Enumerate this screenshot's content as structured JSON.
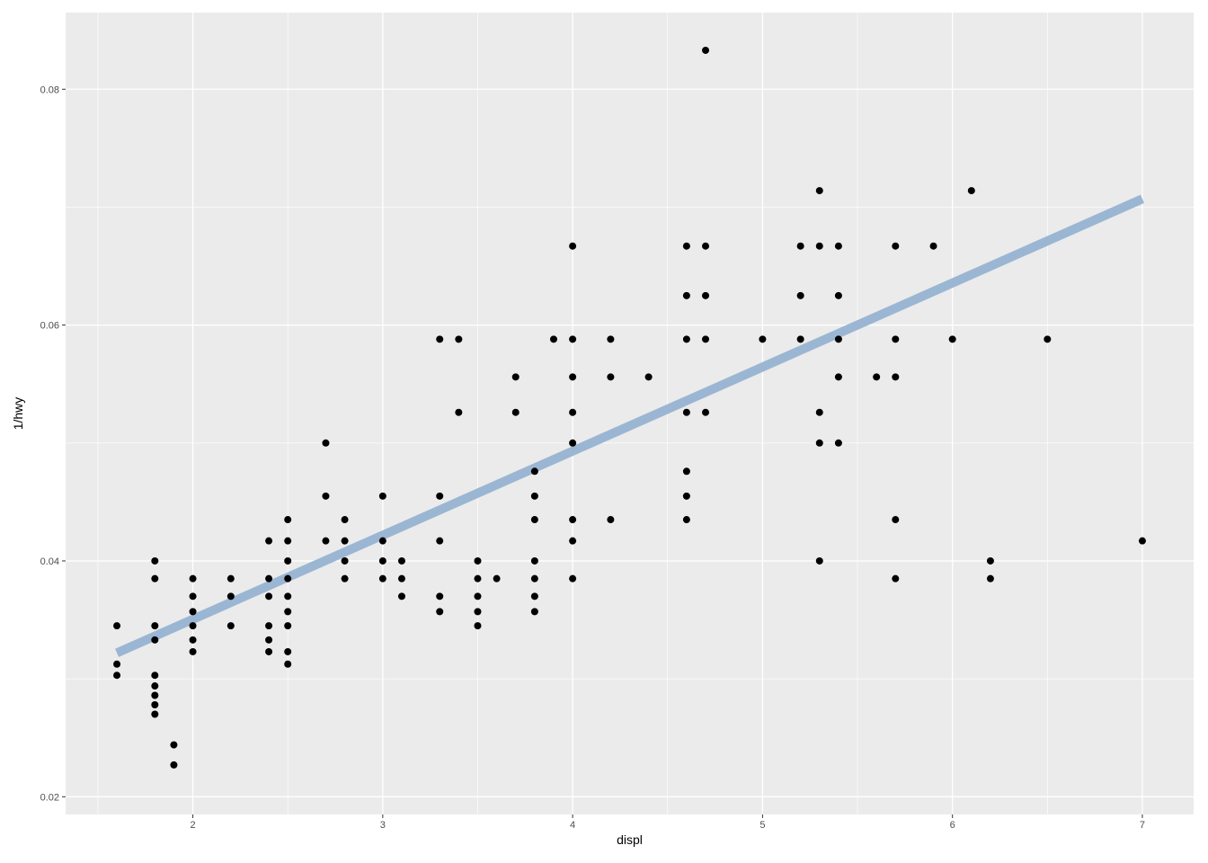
{
  "chart_data": {
    "type": "scatter",
    "title": "",
    "xlabel": "displ",
    "ylabel": "1/hwy",
    "xlim": [
      1.33,
      7.27
    ],
    "ylim": [
      0.0185,
      0.0865
    ],
    "x_ticks": [
      2,
      3,
      4,
      5,
      6,
      7
    ],
    "x_tick_labels": [
      "2",
      "3",
      "4",
      "5",
      "6",
      "7"
    ],
    "y_ticks": [
      0.02,
      0.04,
      0.06,
      0.08
    ],
    "y_tick_labels": [
      "0.02",
      "0.04",
      "0.06",
      "0.08"
    ],
    "grid": true,
    "colors": {
      "panel_background": "#ebebeb",
      "grid": "#ffffff",
      "points": "#000000",
      "fit_line": "#9ab6d3"
    },
    "points": [
      [
        1.6,
        0.0345
      ],
      [
        1.6,
        0.03125
      ],
      [
        1.6,
        0.0303
      ],
      [
        1.8,
        0.04
      ],
      [
        1.8,
        0.0385
      ],
      [
        1.8,
        0.0345
      ],
      [
        1.8,
        0.0333
      ],
      [
        1.8,
        0.0303
      ],
      [
        1.8,
        0.0294
      ],
      [
        1.8,
        0.0286
      ],
      [
        1.8,
        0.0278
      ],
      [
        1.8,
        0.027
      ],
      [
        1.9,
        0.0244
      ],
      [
        1.9,
        0.0227
      ],
      [
        2.0,
        0.0385
      ],
      [
        2.0,
        0.037
      ],
      [
        2.0,
        0.0357
      ],
      [
        2.0,
        0.0345
      ],
      [
        2.0,
        0.0333
      ],
      [
        2.0,
        0.0323
      ],
      [
        2.2,
        0.0385
      ],
      [
        2.2,
        0.037
      ],
      [
        2.2,
        0.0345
      ],
      [
        2.4,
        0.0417
      ],
      [
        2.4,
        0.0385
      ],
      [
        2.4,
        0.037
      ],
      [
        2.4,
        0.0345
      ],
      [
        2.4,
        0.0333
      ],
      [
        2.4,
        0.0323
      ],
      [
        2.5,
        0.0435
      ],
      [
        2.5,
        0.0417
      ],
      [
        2.5,
        0.04
      ],
      [
        2.5,
        0.0385
      ],
      [
        2.5,
        0.037
      ],
      [
        2.5,
        0.0357
      ],
      [
        2.5,
        0.0345
      ],
      [
        2.5,
        0.0323
      ],
      [
        2.5,
        0.03125
      ],
      [
        2.7,
        0.05
      ],
      [
        2.7,
        0.0455
      ],
      [
        2.7,
        0.0417
      ],
      [
        2.8,
        0.0435
      ],
      [
        2.8,
        0.0417
      ],
      [
        2.8,
        0.04
      ],
      [
        2.8,
        0.0385
      ],
      [
        3.0,
        0.0455
      ],
      [
        3.0,
        0.0417
      ],
      [
        3.0,
        0.04
      ],
      [
        3.0,
        0.0385
      ],
      [
        3.1,
        0.04
      ],
      [
        3.1,
        0.0385
      ],
      [
        3.1,
        0.037
      ],
      [
        3.3,
        0.0588
      ],
      [
        3.3,
        0.0455
      ],
      [
        3.3,
        0.0417
      ],
      [
        3.3,
        0.037
      ],
      [
        3.3,
        0.0357
      ],
      [
        3.4,
        0.0588
      ],
      [
        3.4,
        0.0526
      ],
      [
        3.5,
        0.04
      ],
      [
        3.5,
        0.0385
      ],
      [
        3.5,
        0.037
      ],
      [
        3.5,
        0.0357
      ],
      [
        3.5,
        0.0345
      ],
      [
        3.6,
        0.0385
      ],
      [
        3.7,
        0.0556
      ],
      [
        3.7,
        0.0526
      ],
      [
        3.8,
        0.0476
      ],
      [
        3.8,
        0.0455
      ],
      [
        3.8,
        0.0435
      ],
      [
        3.8,
        0.04
      ],
      [
        3.8,
        0.0385
      ],
      [
        3.8,
        0.037
      ],
      [
        3.8,
        0.0357
      ],
      [
        3.9,
        0.0588
      ],
      [
        4.0,
        0.0667
      ],
      [
        4.0,
        0.0588
      ],
      [
        4.0,
        0.0556
      ],
      [
        4.0,
        0.0526
      ],
      [
        4.0,
        0.05
      ],
      [
        4.0,
        0.0435
      ],
      [
        4.0,
        0.0417
      ],
      [
        4.0,
        0.0385
      ],
      [
        4.2,
        0.0588
      ],
      [
        4.2,
        0.0556
      ],
      [
        4.2,
        0.0435
      ],
      [
        4.4,
        0.0556
      ],
      [
        4.6,
        0.0667
      ],
      [
        4.6,
        0.0625
      ],
      [
        4.6,
        0.0588
      ],
      [
        4.6,
        0.0526
      ],
      [
        4.6,
        0.0476
      ],
      [
        4.6,
        0.0455
      ],
      [
        4.6,
        0.0435
      ],
      [
        4.7,
        0.0833
      ],
      [
        4.7,
        0.0667
      ],
      [
        4.7,
        0.0625
      ],
      [
        4.7,
        0.0588
      ],
      [
        4.7,
        0.0526
      ],
      [
        5.0,
        0.0588
      ],
      [
        5.2,
        0.0667
      ],
      [
        5.2,
        0.0625
      ],
      [
        5.2,
        0.0588
      ],
      [
        5.3,
        0.0714
      ],
      [
        5.3,
        0.0667
      ],
      [
        5.3,
        0.0526
      ],
      [
        5.3,
        0.05
      ],
      [
        5.3,
        0.04
      ],
      [
        5.4,
        0.0667
      ],
      [
        5.4,
        0.0625
      ],
      [
        5.4,
        0.0588
      ],
      [
        5.4,
        0.0556
      ],
      [
        5.4,
        0.05
      ],
      [
        5.6,
        0.0556
      ],
      [
        5.7,
        0.0667
      ],
      [
        5.7,
        0.0588
      ],
      [
        5.7,
        0.0556
      ],
      [
        5.7,
        0.0435
      ],
      [
        5.7,
        0.0385
      ],
      [
        5.9,
        0.0667
      ],
      [
        6.0,
        0.0588
      ],
      [
        6.1,
        0.0714
      ],
      [
        6.2,
        0.04
      ],
      [
        6.2,
        0.0385
      ],
      [
        6.5,
        0.0588
      ],
      [
        7.0,
        0.0417
      ]
    ],
    "fit_line": {
      "x": [
        1.6,
        7.0
      ],
      "y": [
        0.0322,
        0.0707
      ]
    }
  }
}
